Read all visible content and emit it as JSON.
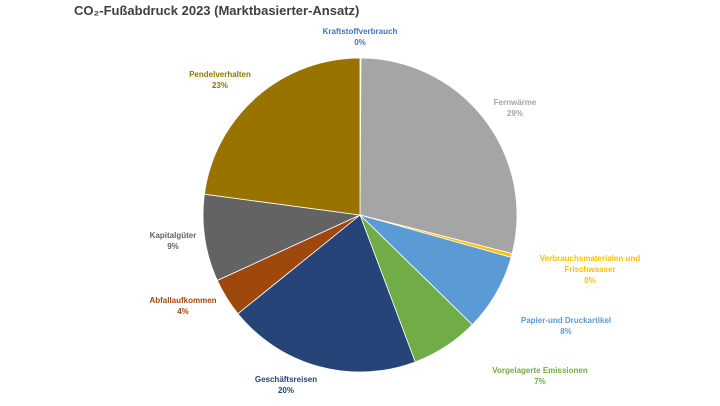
{
  "chart_data": {
    "type": "pie",
    "title": "CO₂-Fußabdruck 2023 (Marktbasierter-Ansatz)",
    "categories": [
      "Kraftstoffverbrauch",
      "Fernwärme",
      "Verbrauchsmaterialen und Frischwasser",
      "Papier-und Druckartikel",
      "Vorgelagerte Emissionen",
      "Geschäftsreisen",
      "Abfallaufkommen",
      "Kapitalgüter",
      "Pendelverhalten"
    ],
    "values": [
      0.1,
      29,
      0.4,
      8,
      7,
      20,
      4,
      9,
      23
    ],
    "value_labels": [
      "0%",
      "29%",
      "0%",
      "8%",
      "7%",
      "20%",
      "4%",
      "9%",
      "23%"
    ],
    "colors": [
      "#4472c4",
      "#a5a5a5",
      "#ffc000",
      "#5b9bd5",
      "#70ad47",
      "#264478",
      "#9e480e",
      "#636363",
      "#997300"
    ]
  }
}
